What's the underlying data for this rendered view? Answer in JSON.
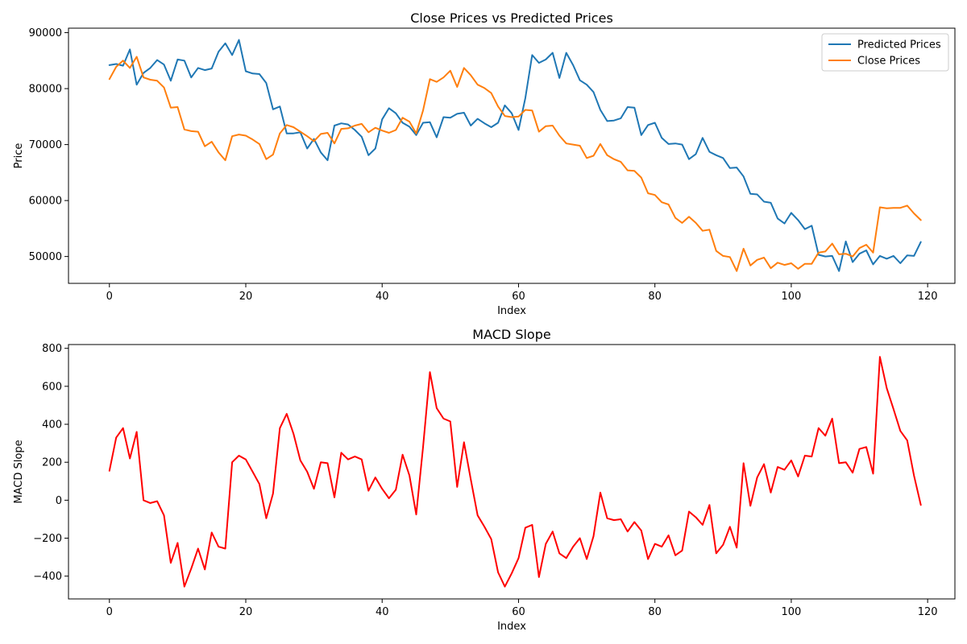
{
  "chart_data": [
    {
      "type": "line",
      "title": "Close Prices vs Predicted Prices",
      "xlabel": "Index",
      "ylabel": "Price",
      "xlim": [
        -6,
        124
      ],
      "ylim": [
        45200,
        90800
      ],
      "x_ticks": [
        0,
        20,
        40,
        60,
        80,
        100,
        120
      ],
      "x_tick_labels": [
        "0",
        "20",
        "40",
        "60",
        "80",
        "100",
        "120"
      ],
      "y_ticks": [
        50000,
        60000,
        70000,
        80000,
        90000
      ],
      "y_tick_labels": [
        "50000",
        "60000",
        "70000",
        "80000",
        "90000"
      ],
      "grid": false,
      "legend_position": "top-right",
      "series": [
        {
          "name": "Predicted Prices",
          "color": "#1f77b4",
          "values": [
            84200,
            84400,
            84100,
            87000,
            80700,
            82800,
            83700,
            85100,
            84300,
            81400,
            85200,
            85000,
            82000,
            83700,
            83300,
            83600,
            86600,
            88100,
            86000,
            88700,
            83100,
            82700,
            82600,
            81000,
            76300,
            76800,
            72000,
            72000,
            72200,
            69300,
            71000,
            68600,
            67200,
            73400,
            73800,
            73600,
            72600,
            71400,
            68100,
            69300,
            74500,
            76500,
            75600,
            73900,
            73200,
            71700,
            73900,
            74000,
            71300,
            74900,
            74800,
            75500,
            75700,
            73400,
            74600,
            73800,
            73100,
            73900,
            77000,
            75600,
            72600,
            78300,
            86000,
            84600,
            85200,
            86400,
            81900,
            86400,
            84200,
            81500,
            80700,
            79400,
            76200,
            74200,
            74300,
            74700,
            76700,
            76600,
            71700,
            73500,
            73900,
            71200,
            70100,
            70200,
            70000,
            67400,
            68300,
            71200,
            68700,
            68100,
            67600,
            65800,
            65900,
            64300,
            61200,
            61100,
            59800,
            59600,
            56800,
            55900,
            57800,
            56500,
            54900,
            55500,
            50300,
            50000,
            50100,
            47400,
            52700,
            49000,
            50500,
            51100,
            48600,
            50100,
            49600,
            50100,
            48800,
            50200,
            50100,
            52600
          ]
        },
        {
          "name": "Close Prices",
          "color": "#ff7f0e",
          "values": [
            81700,
            83900,
            85000,
            83700,
            85700,
            82000,
            81600,
            81400,
            80200,
            76600,
            76700,
            72700,
            72400,
            72300,
            69700,
            70500,
            68600,
            67200,
            71500,
            71800,
            71600,
            70900,
            70100,
            67400,
            68200,
            72000,
            73500,
            73100,
            72300,
            71500,
            70600,
            71900,
            72100,
            70200,
            72800,
            72900,
            73400,
            73700,
            72200,
            73000,
            72500,
            72100,
            72600,
            74800,
            74100,
            72000,
            76100,
            81700,
            81200,
            82000,
            83200,
            80300,
            83700,
            82400,
            80700,
            80100,
            79200,
            76800,
            75100,
            74900,
            75000,
            76200,
            76100,
            72300,
            73300,
            73400,
            71600,
            70200,
            70000,
            69800,
            67600,
            68000,
            70100,
            68100,
            67400,
            66900,
            65400,
            65300,
            64100,
            61300,
            61000,
            59700,
            59300,
            56900,
            56000,
            57100,
            56000,
            54600,
            54800,
            51000,
            50100,
            49900,
            47400,
            51400,
            48400,
            49400,
            49800,
            47900,
            48900,
            48500,
            48800,
            47800,
            48700,
            48700,
            50700,
            50900,
            52300,
            50400,
            50500,
            50000,
            51500,
            52100,
            50700,
            58800,
            58600,
            58700,
            58700,
            59100,
            57700,
            56500
          ]
        }
      ]
    },
    {
      "type": "line",
      "title": "MACD Slope",
      "xlabel": "Index",
      "ylabel": "MACD Slope",
      "xlim": [
        -6,
        124
      ],
      "ylim": [
        -520,
        820
      ],
      "x_ticks": [
        0,
        20,
        40,
        60,
        80,
        100,
        120
      ],
      "x_tick_labels": [
        "0",
        "20",
        "40",
        "60",
        "80",
        "100",
        "120"
      ],
      "y_ticks": [
        -400,
        -200,
        0,
        200,
        400,
        600,
        800
      ],
      "y_tick_labels": [
        "−400",
        "−200",
        "0",
        "200",
        "400",
        "600",
        "800"
      ],
      "grid": false,
      "series": [
        {
          "color": "#ff0000",
          "values": [
            155,
            330,
            380,
            220,
            360,
            0,
            -15,
            -5,
            -80,
            -330,
            -225,
            -455,
            -360,
            -255,
            -365,
            -170,
            -245,
            -255,
            200,
            235,
            215,
            150,
            85,
            -95,
            35,
            380,
            455,
            350,
            210,
            150,
            60,
            200,
            195,
            15,
            250,
            215,
            230,
            215,
            50,
            120,
            60,
            10,
            55,
            240,
            130,
            -75,
            280,
            675,
            485,
            430,
            415,
            70,
            305,
            110,
            -80,
            -140,
            -205,
            -380,
            -455,
            -385,
            -305,
            -145,
            -130,
            -405,
            -230,
            -165,
            -280,
            -305,
            -245,
            -200,
            -310,
            -190,
            40,
            -95,
            -105,
            -100,
            -165,
            -115,
            -160,
            -310,
            -230,
            -245,
            -185,
            -290,
            -265,
            -60,
            -90,
            -130,
            -25,
            -280,
            -235,
            -140,
            -250,
            195,
            -30,
            120,
            190,
            40,
            175,
            160,
            210,
            125,
            235,
            230,
            380,
            340,
            430,
            195,
            200,
            145,
            270,
            280,
            140,
            755,
            590,
            480,
            365,
            315,
            130,
            -25
          ]
        }
      ]
    }
  ]
}
